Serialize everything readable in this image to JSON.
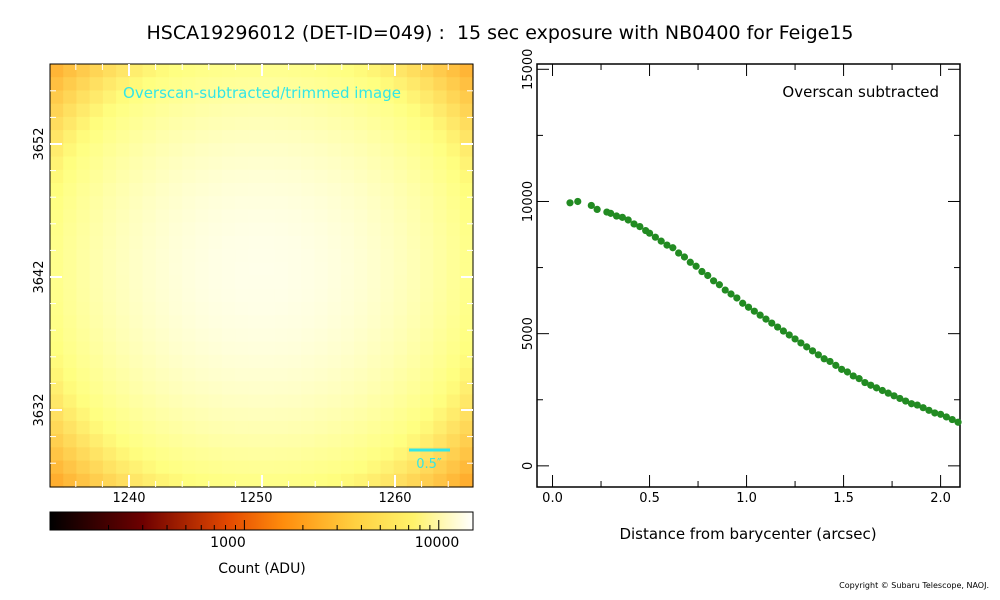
{
  "title": "HSCA19296012 (DET-ID=049) :  15 sec exposure with NB0400 for Feige15",
  "copyright": "Copyright © Subaru Telescope, NAOJ.",
  "image_panel": {
    "overlay_label": "Overscan-subtracted/trimmed image",
    "overlay_color": "#33e6e6",
    "scale_bar_label": "0.5″",
    "x_ticks": [
      "1240",
      "1250",
      "1260"
    ],
    "y_ticks": [
      "3652",
      "3642",
      "3632"
    ],
    "colormap": "afmhot",
    "star_center": {
      "x": 1251,
      "y": 3642
    }
  },
  "colorbar": {
    "label": "Count (ADU)",
    "ticks": [
      "1000",
      "10000"
    ],
    "scale": "log",
    "range": [
      100,
      15000
    ]
  },
  "chart_data": {
    "type": "scatter",
    "title": "Overscan subtracted",
    "xlabel": "Distance from barycenter (arcsec)",
    "ylabel": "",
    "xlim": [
      -0.08,
      2.1
    ],
    "ylim": [
      -800,
      15200
    ],
    "x_ticks": [
      "0.0",
      "0.5",
      "1.0",
      "1.5",
      "2.0"
    ],
    "y_ticks": [
      "0",
      "5000",
      "10000",
      "15000"
    ],
    "color": "#228b22",
    "series": [
      {
        "x": [
          0.09,
          0.13,
          0.2,
          0.23,
          0.28,
          0.3,
          0.33,
          0.36,
          0.39,
          0.42,
          0.45,
          0.48,
          0.5,
          0.53,
          0.56,
          0.59,
          0.62,
          0.65,
          0.68,
          0.71,
          0.74,
          0.77,
          0.8,
          0.83,
          0.86,
          0.89,
          0.92,
          0.95,
          0.98,
          1.01,
          1.04,
          1.07,
          1.1,
          1.13,
          1.16,
          1.19,
          1.22,
          1.25,
          1.28,
          1.31,
          1.34,
          1.37,
          1.4,
          1.43,
          1.46,
          1.49,
          1.52,
          1.55,
          1.58,
          1.61,
          1.64,
          1.67,
          1.7,
          1.73,
          1.76,
          1.79,
          1.82,
          1.85,
          1.88,
          1.91,
          1.94,
          1.97,
          2.0,
          2.03,
          2.06,
          2.09
        ],
        "y": [
          9950,
          10000,
          9850,
          9700,
          9600,
          9550,
          9450,
          9400,
          9300,
          9150,
          9050,
          8900,
          8800,
          8650,
          8500,
          8350,
          8250,
          8050,
          7900,
          7700,
          7550,
          7350,
          7200,
          7000,
          6850,
          6650,
          6500,
          6350,
          6150,
          6000,
          5850,
          5700,
          5550,
          5400,
          5250,
          5100,
          4950,
          4800,
          4650,
          4500,
          4350,
          4200,
          4050,
          3950,
          3800,
          3650,
          3550,
          3400,
          3300,
          3150,
          3050,
          2950,
          2850,
          2750,
          2650,
          2550,
          2450,
          2350,
          2300,
          2200,
          2100,
          2000,
          1950,
          1850,
          1750,
          1650
        ]
      }
    ]
  }
}
